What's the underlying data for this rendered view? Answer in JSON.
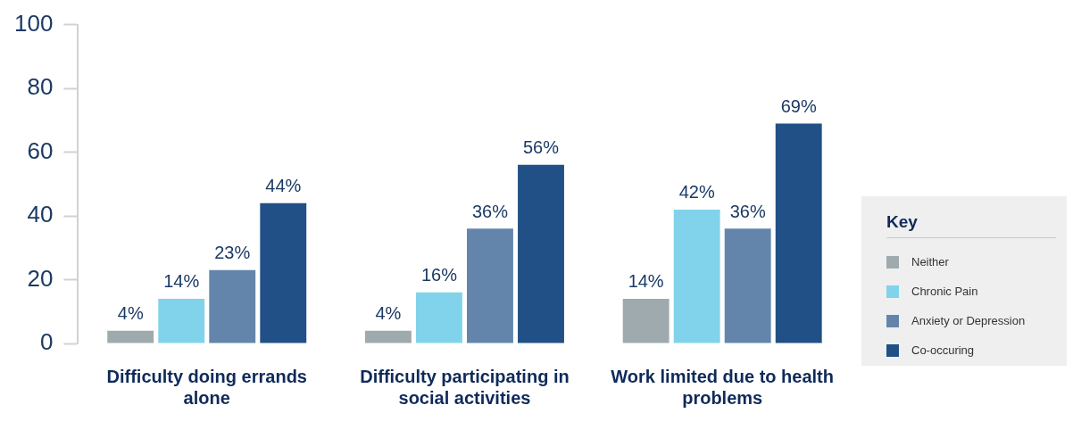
{
  "chart_data": {
    "type": "bar",
    "categories": [
      "Difficulty doing errands alone",
      "Difficulty participating in social activities",
      "Work limited due to health problems"
    ],
    "series": [
      {
        "name": "Neither",
        "color": "#9eaaad",
        "values": [
          4,
          4,
          14
        ],
        "value_labels": [
          "4%",
          "4%",
          "14%"
        ]
      },
      {
        "name": "Chronic Pain",
        "color": "#80d3ea",
        "values": [
          14,
          16,
          42
        ],
        "value_labels": [
          "14%",
          "16%",
          "42%"
        ]
      },
      {
        "name": "Anxiety or Depression",
        "color": "#6485ab",
        "values": [
          23,
          36,
          36
        ],
        "value_labels": [
          "23%",
          "36%",
          "36%"
        ]
      },
      {
        "name": "Co-occuring",
        "color": "#205086",
        "values": [
          44,
          56,
          69
        ],
        "value_labels": [
          "44%",
          "56%",
          "69%"
        ]
      }
    ],
    "ylim": [
      0,
      100
    ],
    "yticks": [
      0,
      20,
      40,
      60,
      80,
      100
    ],
    "grid": false,
    "legend": "right",
    "legend_title": "Key"
  }
}
